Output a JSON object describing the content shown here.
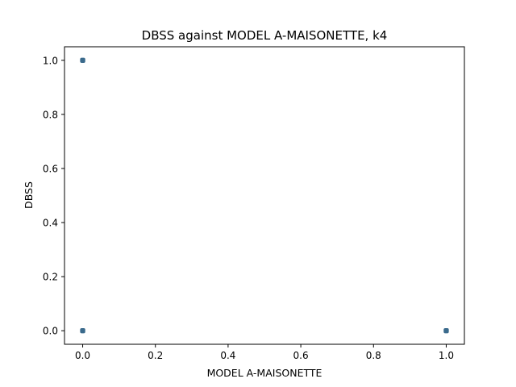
{
  "chart_data": {
    "type": "scatter",
    "title": "DBSS against MODEL A-MAISONETTE, k4",
    "xlabel": "MODEL A-MAISONETTE",
    "ylabel": "DBSS",
    "xlim": [
      -0.05,
      1.05
    ],
    "ylim": [
      -0.05,
      1.05
    ],
    "xticks": [
      0.0,
      0.2,
      0.4,
      0.6,
      0.8,
      1.0
    ],
    "xtick_labels": [
      "0.0",
      "0.2",
      "0.4",
      "0.6",
      "0.8",
      "1.0"
    ],
    "yticks": [
      0.0,
      0.2,
      0.4,
      0.6,
      0.8,
      1.0
    ],
    "ytick_labels": [
      "0.0",
      "0.2",
      "0.4",
      "0.6",
      "0.8",
      "1.0"
    ],
    "grid": false,
    "legend": "none",
    "marker_color": "#3a6a8c",
    "points": [
      {
        "x": 0.0,
        "y": 1.0
      },
      {
        "x": 0.0,
        "y": 0.0
      },
      {
        "x": 1.0,
        "y": 0.0
      }
    ]
  }
}
